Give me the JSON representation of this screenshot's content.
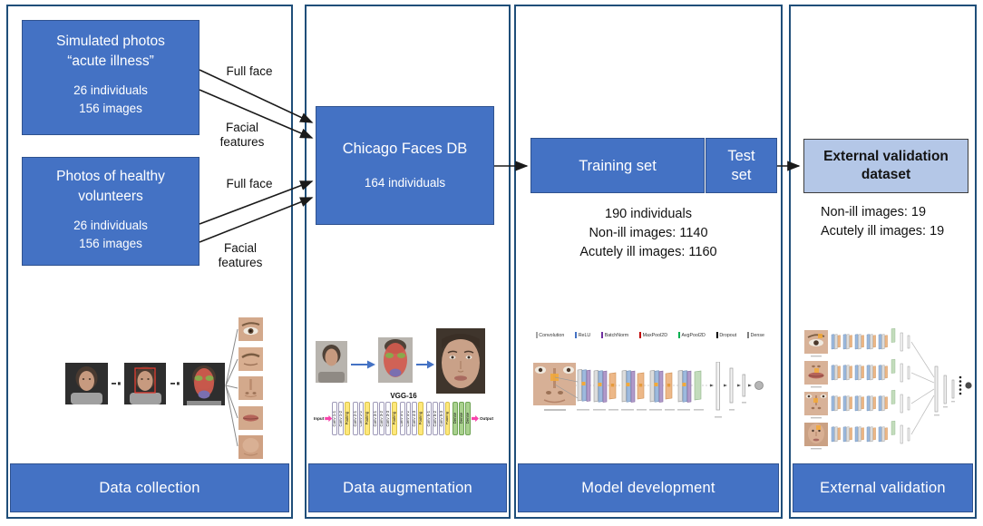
{
  "colors": {
    "frame": "#1f4e79",
    "accent_blue": "#4472c4",
    "accent_blue_dark": "#2f528f",
    "light_blue_box": "#b4c7e7",
    "arrow_black": "#1a1a1a",
    "vgg_pool_yellow": "#ffe87a",
    "vgg_dense_green": "#a9d18e",
    "vgg_io_pink": "#f844ab"
  },
  "panels": [
    {
      "title": "Data collection",
      "box_simulated": {
        "line1": "Simulated photos",
        "line2": "“acute illness”",
        "stat1": "26 individuals",
        "stat2": "156 images"
      },
      "box_healthy": {
        "line1": "Photos of healthy",
        "line2": "volunteers",
        "stat1": "26 individuals",
        "stat2": "156 images"
      },
      "edge_label_top_full": "Full face",
      "edge_label_top_features": "Facial features",
      "edge_label_bottom_full": "Full face",
      "edge_label_bottom_features": "Facial features"
    },
    {
      "title": "Data augmentation",
      "db_box": {
        "line1": "Chicago Faces DB",
        "line2": "164 individuals"
      },
      "vgg": {
        "title": "VGG-16",
        "blocks": [
          {
            "label": "Input",
            "type": "io-in"
          },
          {
            "label": "Conv 1-1",
            "type": "conv"
          },
          {
            "label": "Conv 1-2",
            "type": "conv"
          },
          {
            "label": "Pooling",
            "type": "pool"
          },
          {
            "label": "Conv 2-1",
            "type": "conv"
          },
          {
            "label": "Conv 2-2",
            "type": "conv"
          },
          {
            "label": "Pooling",
            "type": "pool"
          },
          {
            "label": "Conv 3-1",
            "type": "conv"
          },
          {
            "label": "Conv 3-2",
            "type": "conv"
          },
          {
            "label": "Conv 3-3",
            "type": "conv"
          },
          {
            "label": "Pooling",
            "type": "pool"
          },
          {
            "label": "Conv 4-1",
            "type": "conv"
          },
          {
            "label": "Conv 4-2",
            "type": "conv"
          },
          {
            "label": "Conv 4-3",
            "type": "conv"
          },
          {
            "label": "Pooling",
            "type": "pool"
          },
          {
            "label": "Conv 5-1",
            "type": "conv"
          },
          {
            "label": "Conv 5-2",
            "type": "conv"
          },
          {
            "label": "Conv 5-3",
            "type": "conv"
          },
          {
            "label": "Pooling",
            "type": "pool"
          },
          {
            "label": "Dense",
            "type": "dense"
          },
          {
            "label": "Dense",
            "type": "dense"
          },
          {
            "label": "Dense",
            "type": "dense"
          },
          {
            "label": "Output",
            "type": "io-out"
          }
        ]
      }
    },
    {
      "title": "Model development",
      "training_label": "Training set",
      "test_line1": "Test",
      "test_line2": "set",
      "stats": [
        "190 individuals",
        "Non-ill images: 1140",
        "Acutely ill images: 1160"
      ],
      "legend": [
        {
          "label": "Convolution",
          "color": "#a6a6a6"
        },
        {
          "label": "ReLU",
          "color": "#4472c4"
        },
        {
          "label": "BatchNorm",
          "color": "#7030a0"
        },
        {
          "label": "MaxPool2D",
          "color": "#c00000"
        },
        {
          "label": "AvgPool2D",
          "color": "#00b050"
        },
        {
          "label": "Dropout",
          "color": "#000000"
        },
        {
          "label": "Dense",
          "color": "#7f7f7f"
        }
      ]
    },
    {
      "title": "External validation",
      "box": {
        "line1": "External validation",
        "line2": "dataset"
      },
      "stats": [
        "Non-ill images: 19",
        "Acutely ill images: 19"
      ]
    }
  ]
}
